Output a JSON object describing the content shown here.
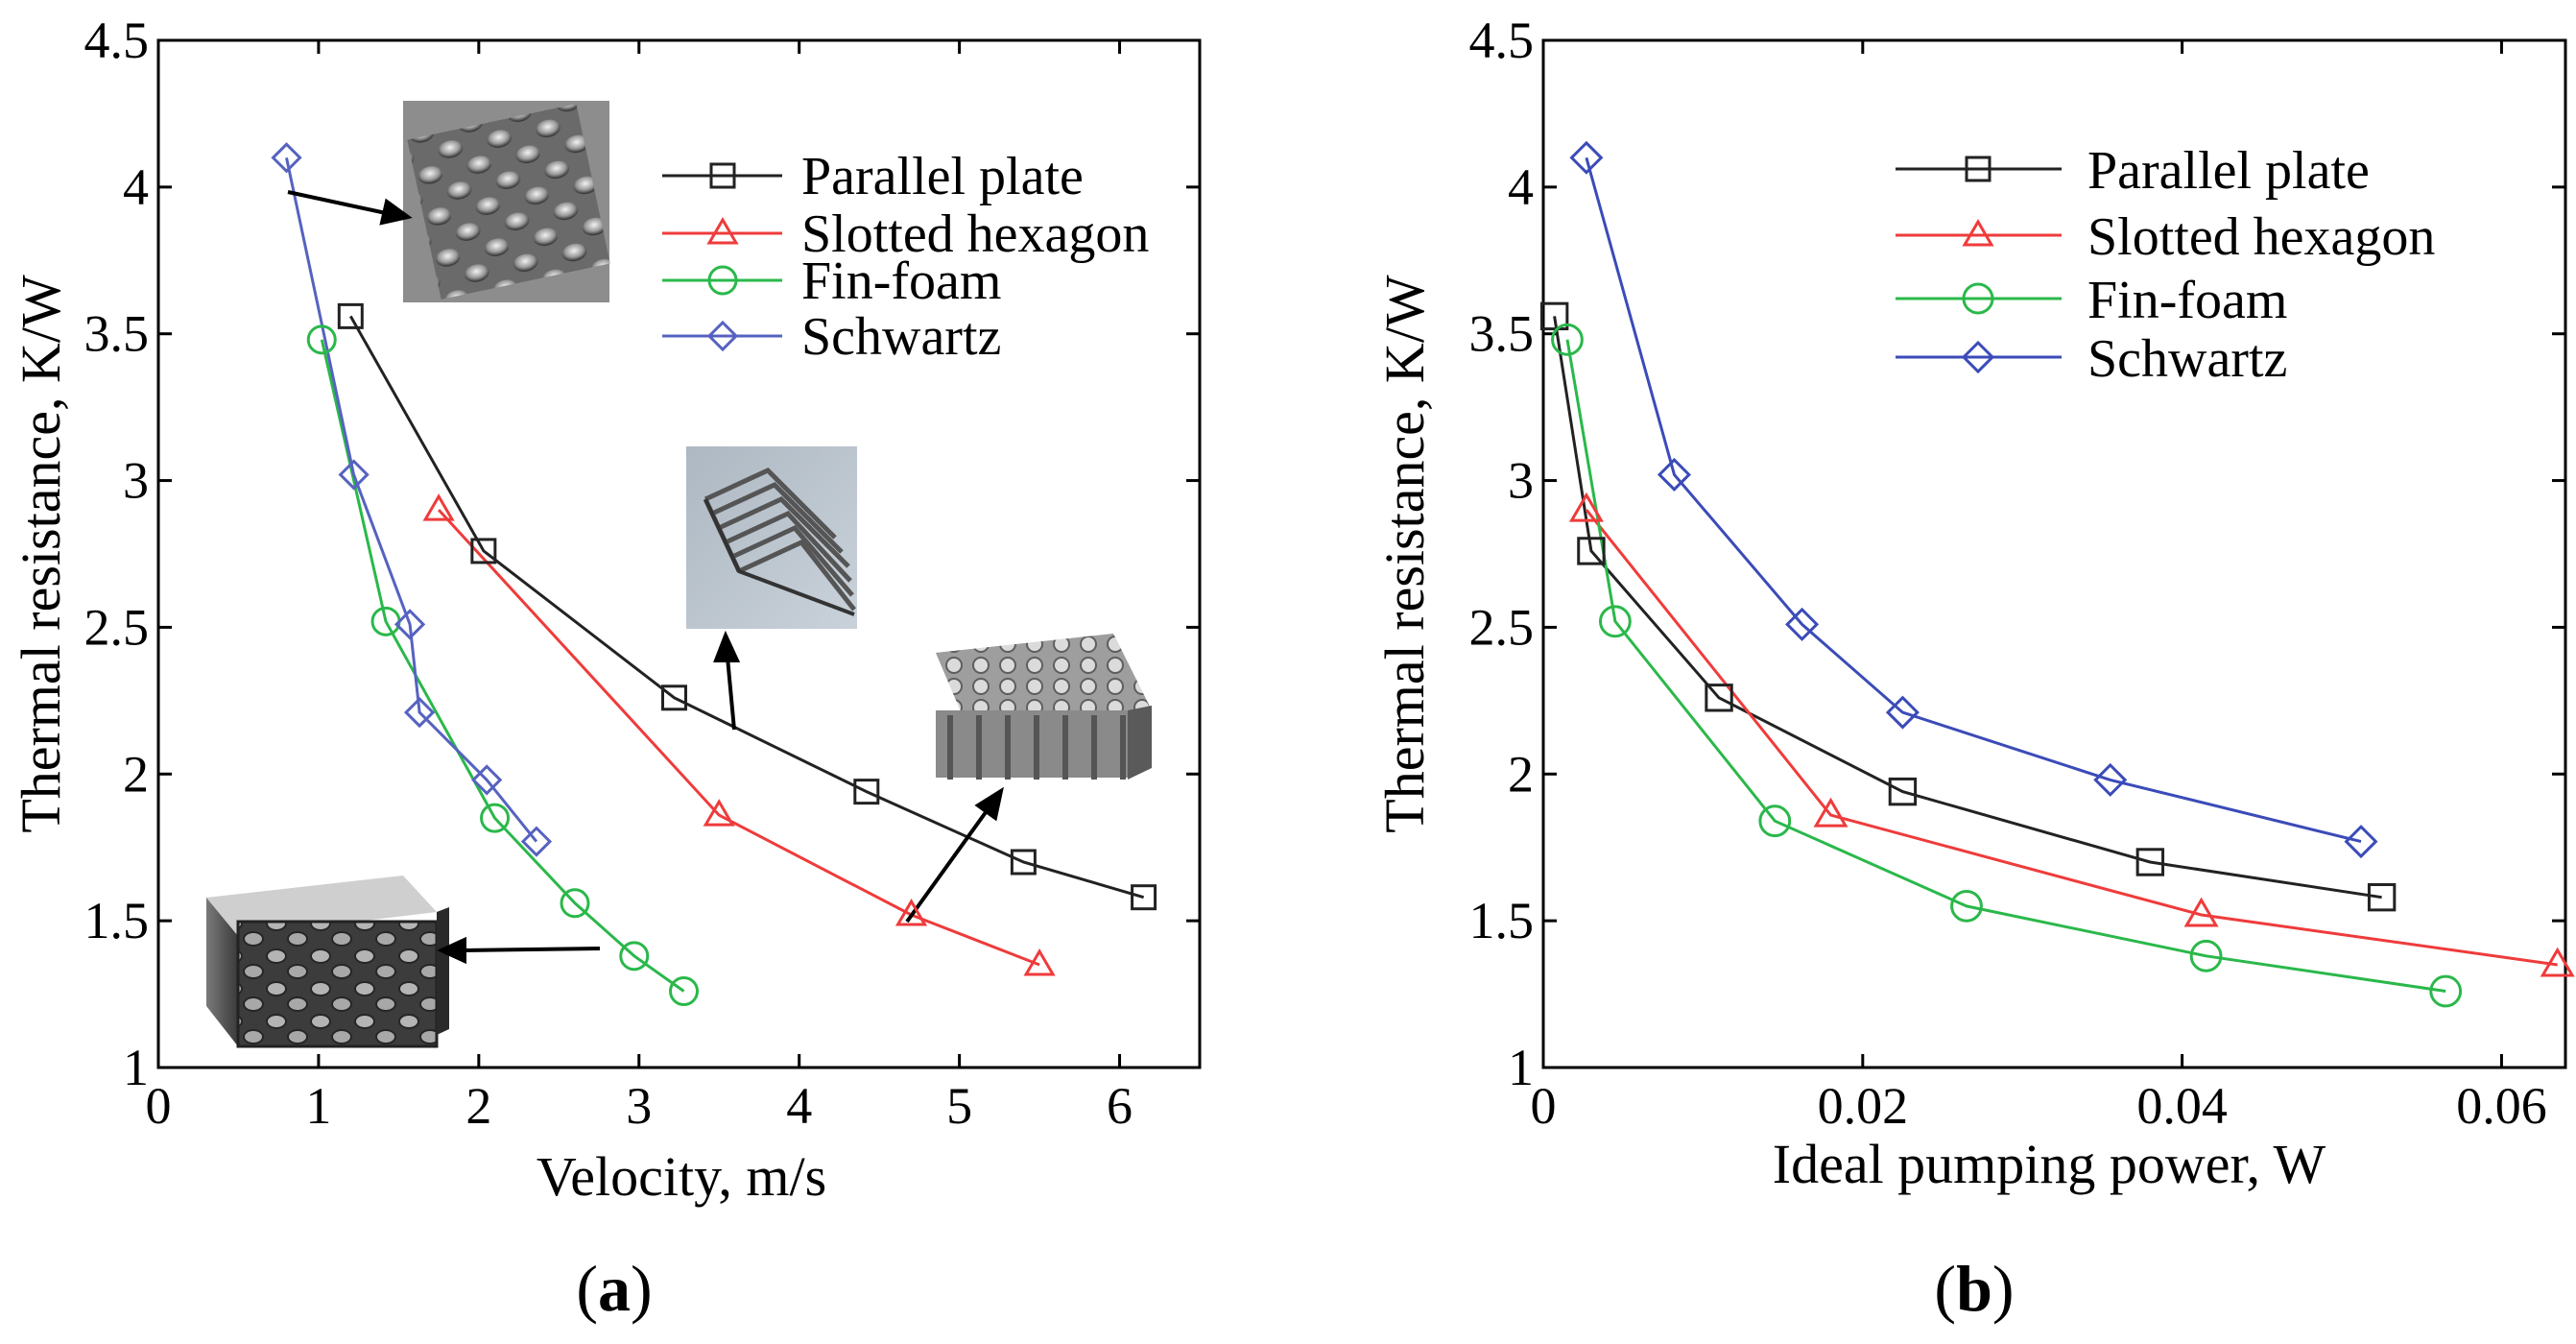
{
  "chart_data": [
    {
      "type": "line",
      "panel_label": "(a)",
      "panel_label_parts": [
        "(",
        "a",
        ")"
      ],
      "xlabel": "Velocity, m/s",
      "ylabel": "Thermal resistance, K/W",
      "xlim": [
        0,
        6.5
      ],
      "ylim": [
        1,
        4.5
      ],
      "xticks": [
        0,
        1,
        2,
        3,
        4,
        5,
        6
      ],
      "xtick_labels": [
        "0",
        "1",
        "2",
        "3",
        "4",
        "5",
        "6"
      ],
      "yticks": [
        1,
        1.5,
        2,
        2.5,
        3,
        3.5,
        4,
        4.5
      ],
      "ytick_labels": [
        "1",
        "1.5",
        "2",
        "2.5",
        "3",
        "3.5",
        "4",
        "4.5"
      ],
      "legend_position": "top-right",
      "series": [
        {
          "name": "Parallel plate",
          "color": "#222222",
          "marker": "square",
          "x": [
            1.2,
            2.03,
            3.22,
            4.42,
            5.4,
            6.15
          ],
          "y": [
            3.56,
            2.76,
            2.26,
            1.94,
            1.7,
            1.58
          ]
        },
        {
          "name": "Slotted hexagon",
          "color": "#ef3b3b",
          "marker": "triangle",
          "x": [
            1.75,
            3.5,
            4.7,
            5.5
          ],
          "y": [
            2.9,
            1.86,
            1.52,
            1.35
          ]
        },
        {
          "name": "Fin-foam",
          "color": "#2ab84a",
          "marker": "circle",
          "x": [
            1.02,
            1.42,
            2.1,
            2.6,
            2.97,
            3.28
          ],
          "y": [
            3.48,
            2.52,
            1.85,
            1.56,
            1.38,
            1.26
          ]
        },
        {
          "name": "Schwartz",
          "color": "#5662c0",
          "marker": "diamond",
          "x": [
            0.8,
            1.22,
            1.57,
            1.63,
            2.05,
            2.36
          ],
          "y": [
            4.1,
            3.02,
            2.51,
            2.21,
            1.98,
            1.77
          ]
        }
      ],
      "insets": [
        {
          "name": "schwartz-structure-image"
        },
        {
          "name": "parallel-plate-image"
        },
        {
          "name": "fin-foam-image"
        },
        {
          "name": "slotted-hexagon-image"
        }
      ]
    },
    {
      "type": "line",
      "panel_label": "(b)",
      "panel_label_parts": [
        "(",
        "b",
        ")"
      ],
      "xlabel": "Ideal pumping power, W",
      "ylabel": "Thermal resistance, K/W",
      "xlim": [
        0,
        0.064
      ],
      "ylim": [
        1,
        4.5
      ],
      "xticks": [
        0,
        0.02,
        0.04,
        0.06
      ],
      "xtick_labels": [
        "0",
        "0.02",
        "0.04",
        "0.06"
      ],
      "yticks": [
        1,
        1.5,
        2,
        2.5,
        3,
        3.5,
        4,
        4.5
      ],
      "ytick_labels": [
        "1",
        "1.5",
        "2",
        "2.5",
        "3",
        "3.5",
        "4",
        "4.5"
      ],
      "legend_position": "top-right",
      "series": [
        {
          "name": "Parallel plate",
          "color": "#222222",
          "marker": "square",
          "x": [
            0.0007,
            0.003,
            0.011,
            0.0225,
            0.038,
            0.0525
          ],
          "y": [
            3.56,
            2.76,
            2.26,
            1.94,
            1.7,
            1.58
          ]
        },
        {
          "name": "Slotted hexagon",
          "color": "#ef3b3b",
          "marker": "triangle",
          "x": [
            0.0027,
            0.018,
            0.0412,
            0.0635
          ],
          "y": [
            2.9,
            1.86,
            1.52,
            1.35
          ]
        },
        {
          "name": "Fin-foam",
          "color": "#2ab84a",
          "marker": "circle",
          "x": [
            0.0015,
            0.0045,
            0.0145,
            0.0265,
            0.0415,
            0.0565
          ],
          "y": [
            3.48,
            2.52,
            1.84,
            1.55,
            1.38,
            1.26
          ]
        },
        {
          "name": "Schwartz",
          "color": "#3b4bb8",
          "marker": "diamond",
          "x": [
            0.0027,
            0.0082,
            0.0162,
            0.0225,
            0.0355,
            0.0512
          ],
          "y": [
            4.1,
            3.02,
            2.51,
            2.21,
            1.98,
            1.77
          ]
        }
      ]
    }
  ]
}
